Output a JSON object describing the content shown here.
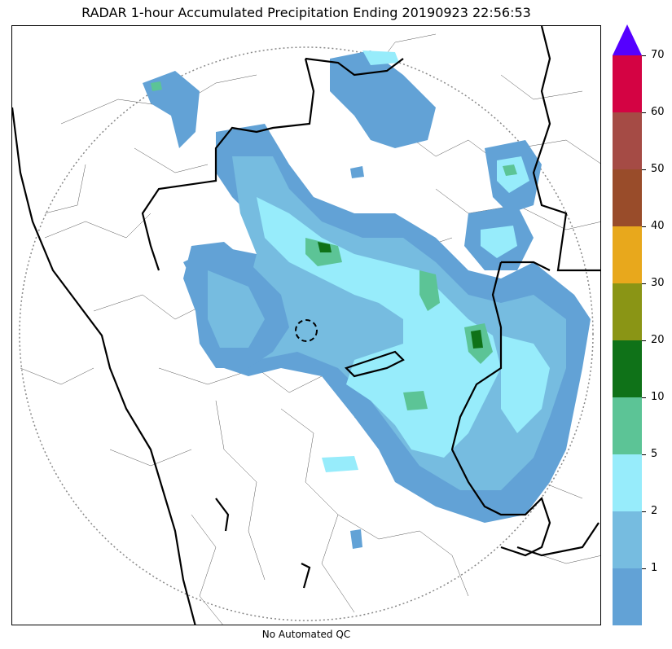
{
  "title": "RADAR 1-hour Accumulated Precipitation Ending 20190923 22:56:53",
  "footer": "No Automated QC",
  "colorbar": {
    "extend_color": "#5500ff",
    "bands": [
      {
        "color": "#62a2d6"
      },
      {
        "color": "#76bce0"
      },
      {
        "color": "#97ecfb"
      },
      {
        "color": "#5cc496"
      },
      {
        "color": "#0f7218"
      },
      {
        "color": "#8a9515"
      },
      {
        "color": "#e8a81c"
      },
      {
        "color": "#994c2a"
      },
      {
        "color": "#a54b45"
      },
      {
        "color": "#d40343"
      }
    ],
    "tick_labels": [
      "1",
      "2",
      "5",
      "10",
      "20",
      "30",
      "40",
      "50",
      "60",
      "70"
    ]
  },
  "map": {
    "precip_colors": {
      "light": "#62a2d6",
      "mid": "#76bce0",
      "cyan": "#97ecfb",
      "green": "#5cc496",
      "dark_green": "#0f7218"
    }
  }
}
